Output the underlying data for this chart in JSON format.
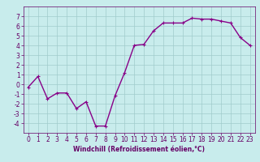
{
  "x": [
    0,
    1,
    2,
    3,
    4,
    5,
    6,
    7,
    8,
    9,
    10,
    11,
    12,
    13,
    14,
    15,
    16,
    17,
    18,
    19,
    20,
    21,
    22,
    23
  ],
  "y": [
    -0.3,
    0.8,
    -1.5,
    -0.9,
    -0.9,
    -2.5,
    -1.8,
    -4.3,
    -4.3,
    -1.2,
    1.2,
    4.0,
    4.1,
    5.5,
    6.3,
    6.3,
    6.3,
    6.8,
    6.7,
    6.7,
    6.5,
    6.3,
    4.8,
    4.0
  ],
  "line_color": "#880088",
  "marker": "+",
  "background_color": "#c8ecec",
  "grid_color": "#a0cccc",
  "axis_label_color": "#660066",
  "tick_color": "#660066",
  "xlabel": "Windchill (Refroidissement éolien,°C)",
  "xlim": [
    -0.5,
    23.5
  ],
  "ylim": [
    -5,
    8
  ],
  "yticks": [
    -4,
    -3,
    -2,
    -1,
    0,
    1,
    2,
    3,
    4,
    5,
    6,
    7
  ],
  "xticks": [
    0,
    1,
    2,
    3,
    4,
    5,
    6,
    7,
    8,
    9,
    10,
    11,
    12,
    13,
    14,
    15,
    16,
    17,
    18,
    19,
    20,
    21,
    22,
    23
  ],
  "marker_size": 3,
  "line_width": 1.0,
  "tick_fontsize": 5.5,
  "xlabel_fontsize": 5.5
}
